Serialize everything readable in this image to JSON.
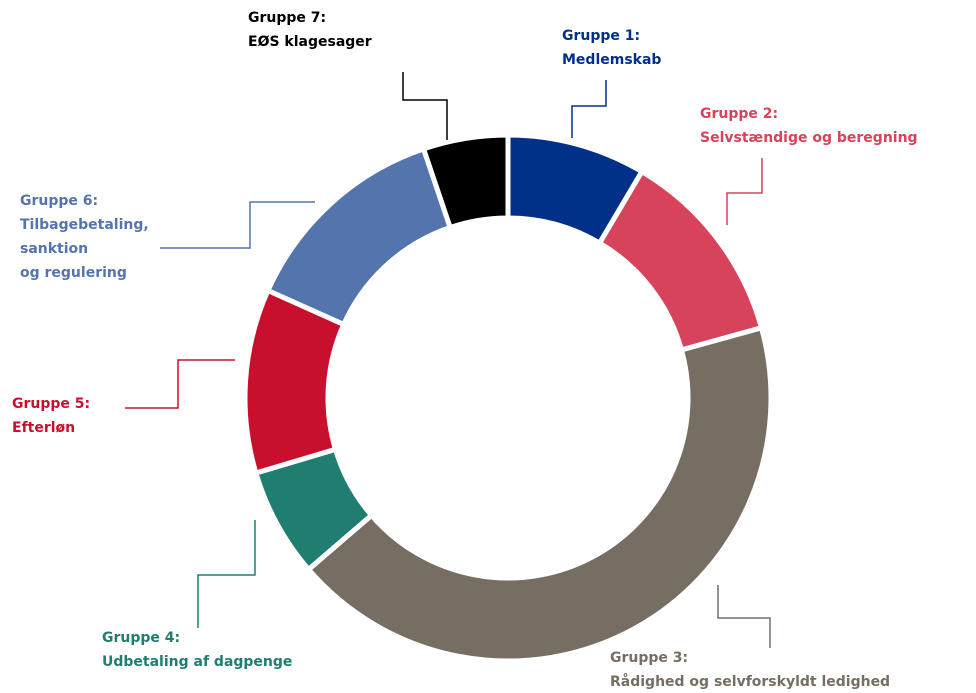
{
  "chart_data": {
    "type": "donut",
    "categories": [
      [
        "Gruppe 1:",
        "Medlemskab"
      ],
      [
        "Gruppe 2:",
        "Selvstændige og beregning"
      ],
      [
        "Gruppe 3:",
        "Rådighed og selvforskyldt ledighed"
      ],
      [
        "Gruppe 4:",
        "Udbetaling af dagpenge"
      ],
      [
        "Gruppe 5:",
        "Efterløn"
      ],
      [
        "Gruppe 6:",
        "Tilbagebetaling,",
        "sanktion",
        "og regulering"
      ],
      [
        "Gruppe 7:",
        "EØS klagesager"
      ]
    ],
    "values": [
      8.5,
      12.2,
      43,
      6.7,
      11.3,
      13.1,
      5.2
    ],
    "colors": [
      "#003087",
      "#d6435a",
      "#776e63",
      "#1f7e70",
      "#c8102e",
      "#5474ae",
      "#000000"
    ]
  }
}
